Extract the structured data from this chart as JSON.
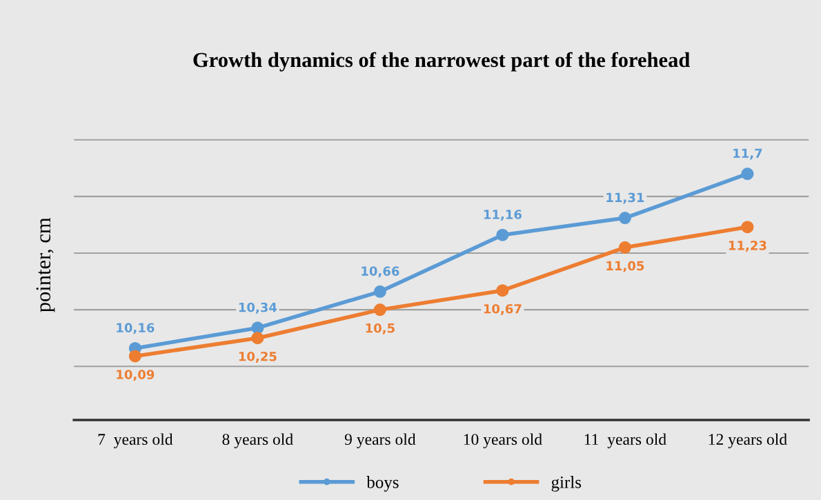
{
  "chart_data": {
    "type": "line",
    "title": "Growth dynamics of the narrowest part of the forehead",
    "ylabel": "pointer, cm",
    "categories": [
      "7  years old",
      "8 years old",
      "9 years old",
      "10 years old",
      "11  years old",
      "12 years old"
    ],
    "series": [
      {
        "name": "boys",
        "color": "#5b9bd5",
        "values": [
          10.16,
          10.34,
          10.66,
          11.16,
          11.31,
          11.7
        ],
        "value_labels": [
          "10,16",
          "10,34",
          "10,66",
          "11,16",
          "11,31",
          "11,7"
        ]
      },
      {
        "name": "girls",
        "color": "#ed7d31",
        "values": [
          10.09,
          10.25,
          10.5,
          10.67,
          11.05,
          11.23
        ],
        "value_labels": [
          "10,09",
          "10,25",
          "10,5",
          "10,67",
          "11,05",
          "11,23"
        ]
      }
    ],
    "tick_labels": "x",
    "grid": "y",
    "legend": "bottom",
    "marker": "circle",
    "line_style": "solid"
  }
}
